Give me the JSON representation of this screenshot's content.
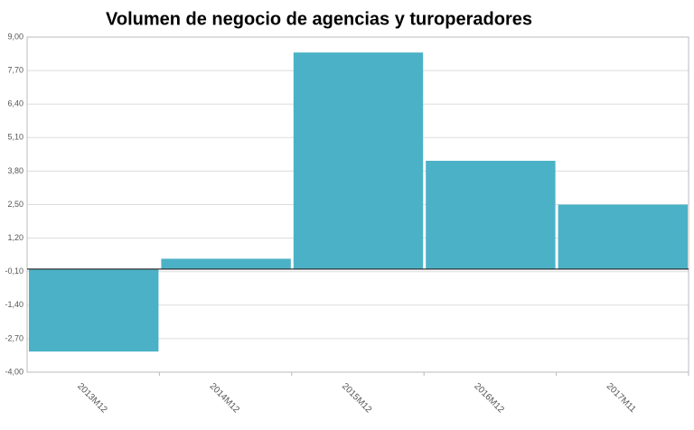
{
  "chart_data": {
    "type": "bar",
    "title": "Volumen de negocio de agencias y turoperadores",
    "categories": [
      "2013M12",
      "2014M12",
      "2015M12",
      "2016M12",
      "2017M11"
    ],
    "values": [
      -3.2,
      0.4,
      8.4,
      4.2,
      2.5
    ],
    "color": "#4bb1c6",
    "ylim": [
      -4,
      9
    ],
    "yticks": [
      {
        "value": 9,
        "label": "9,00"
      },
      {
        "value": 7.7,
        "label": "7,70"
      },
      {
        "value": 6.4,
        "label": "6,40"
      },
      {
        "value": 5.1,
        "label": "5,10"
      },
      {
        "value": 3.8,
        "label": "3,80"
      },
      {
        "value": 2.5,
        "label": "2,50"
      },
      {
        "value": 1.2,
        "label": "1,20"
      },
      {
        "value": -0.1,
        "label": "-0,10"
      },
      {
        "value": -1.4,
        "label": "-1,40"
      },
      {
        "value": -2.7,
        "label": "-2,70"
      },
      {
        "value": -4,
        "label": "-4,00"
      }
    ],
    "grid": true
  }
}
